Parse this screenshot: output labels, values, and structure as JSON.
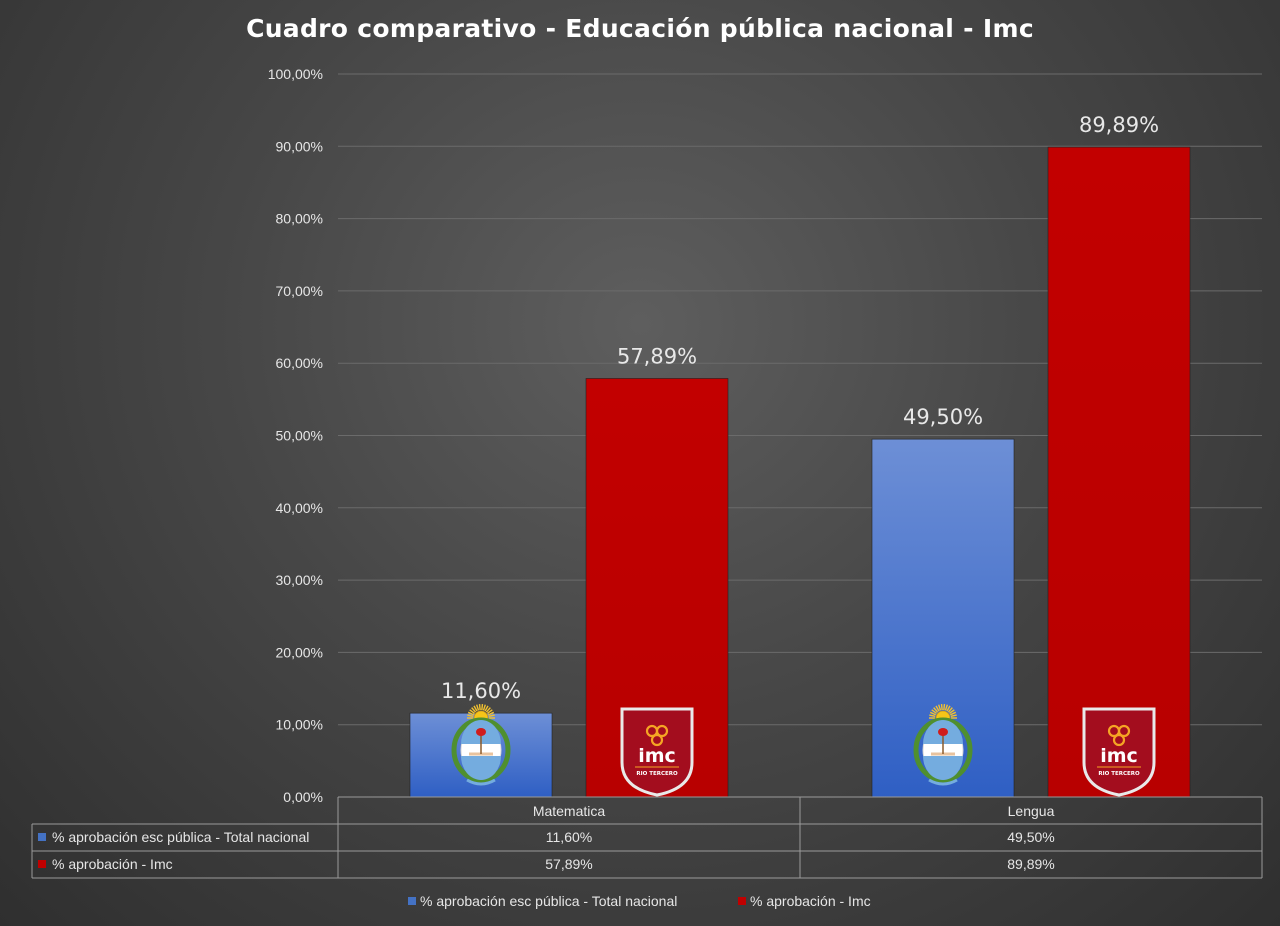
{
  "chart_data": {
    "type": "bar",
    "title": "Cuadro comparativo - Educación pública nacional - Imc",
    "categories": [
      "Matematica",
      "Lengua"
    ],
    "series": [
      {
        "name": "% aprobación esc pública - Total nacional",
        "values": [
          11.6,
          49.5
        ],
        "labels": [
          "11,60%",
          "49,50%"
        ],
        "table_labels": [
          "11,60%",
          "49,50%"
        ],
        "color": "#4472c4"
      },
      {
        "name": "% aprobación - Imc",
        "values": [
          57.89,
          89.89
        ],
        "labels": [
          "57,89%",
          "89,89%"
        ],
        "table_labels": [
          "57,89%",
          "89,89%"
        ],
        "color": "#c00000"
      }
    ],
    "ylim": [
      0,
      100
    ],
    "yticks": [
      0,
      10,
      20,
      30,
      40,
      50,
      60,
      70,
      80,
      90,
      100
    ],
    "ytick_labels": [
      "0,00%",
      "10,00%",
      "20,00%",
      "30,00%",
      "40,00%",
      "50,00%",
      "60,00%",
      "70,00%",
      "80,00%",
      "90,00%",
      "100,00%"
    ],
    "grid": true,
    "legend_position": "bottom",
    "data_table": true,
    "bar_icons": [
      "argentina-coat-of-arms",
      "imc-rio-tercero-shield"
    ]
  },
  "logo_text": {
    "brand": "imc",
    "place": "RIO TERCERO"
  }
}
